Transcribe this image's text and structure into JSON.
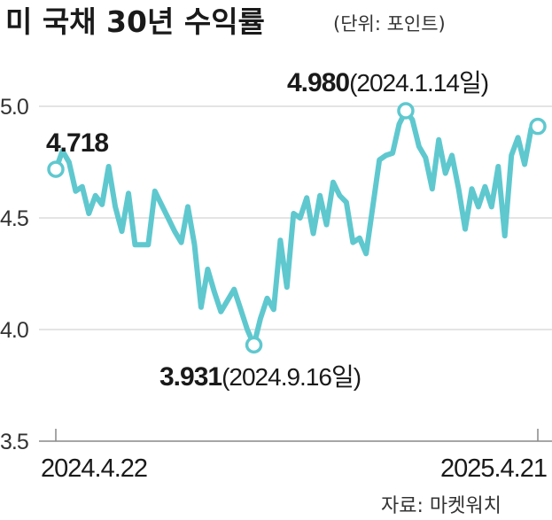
{
  "title": "미 국채 30년 수익률",
  "unit": "(단위: 포인트)",
  "source": "자료: 마켓워치",
  "colors": {
    "line": "#5fc8cf",
    "grid": "#c8c8c8",
    "axis": "#888888",
    "text": "#1a1a1a"
  },
  "chart_data": {
    "type": "line",
    "title": "미 국채 30년 수익률",
    "ylim": [
      3.5,
      5.0
    ],
    "yticks": [
      "3.5",
      "4.0",
      "4.5",
      "5.0"
    ],
    "grid": true,
    "xtick_labels": [
      "2024.4.22",
      "2025.4.21"
    ],
    "y": [
      4.718,
      4.8,
      4.75,
      4.62,
      4.64,
      4.52,
      4.6,
      4.56,
      4.73,
      4.55,
      4.44,
      4.61,
      4.38,
      4.38,
      4.38,
      4.62,
      4.56,
      4.5,
      4.44,
      4.39,
      4.55,
      4.38,
      4.1,
      4.27,
      4.17,
      4.08,
      4.13,
      4.18,
      4.09,
      4.0,
      3.931,
      4.05,
      4.14,
      4.09,
      4.4,
      4.19,
      4.52,
      4.5,
      4.59,
      4.43,
      4.6,
      4.47,
      4.66,
      4.6,
      4.57,
      4.39,
      4.41,
      4.34,
      4.55,
      4.76,
      4.78,
      4.79,
      4.92,
      4.98,
      4.94,
      4.82,
      4.77,
      4.63,
      4.85,
      4.7,
      4.78,
      4.63,
      4.45,
      4.63,
      4.55,
      4.64,
      4.55,
      4.73,
      4.42,
      4.78,
      4.86,
      4.74,
      4.9,
      4.91
    ],
    "annotations": [
      {
        "bold": "4.718",
        "rest": ""
      },
      {
        "bold": "3.931",
        "rest": "(2024.9.16일)"
      },
      {
        "bold": "4.980",
        "rest": "(2024.1.14일)"
      }
    ]
  }
}
